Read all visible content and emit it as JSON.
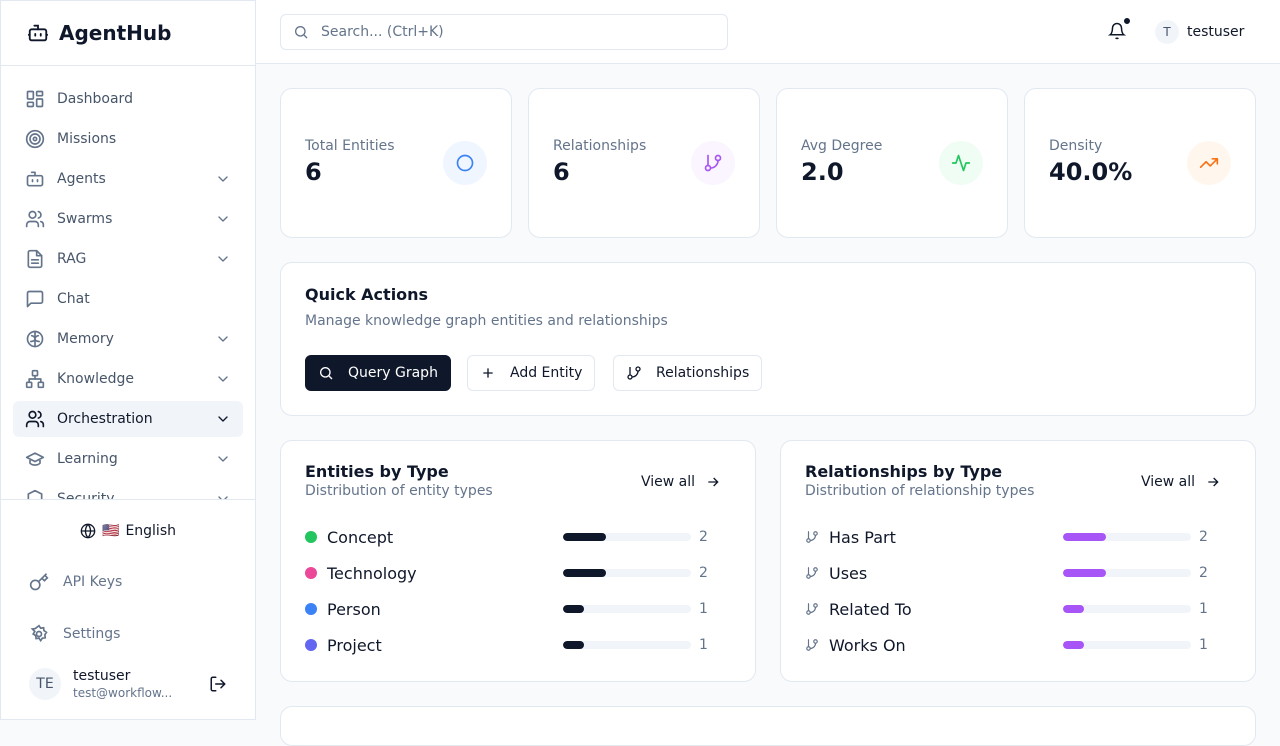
{
  "brand": {
    "name": "AgentHub"
  },
  "sidebar": {
    "items": [
      {
        "label": "Dashboard",
        "icon": "dashboard-icon",
        "chevron": false
      },
      {
        "label": "Missions",
        "icon": "target-icon",
        "chevron": false
      },
      {
        "label": "Agents",
        "icon": "bot-icon",
        "chevron": true
      },
      {
        "label": "Swarms",
        "icon": "users-icon",
        "chevron": true
      },
      {
        "label": "RAG",
        "icon": "file-text-icon",
        "chevron": true
      },
      {
        "label": "Chat",
        "icon": "message-icon",
        "chevron": false
      },
      {
        "label": "Memory",
        "icon": "brain-icon",
        "chevron": true
      },
      {
        "label": "Knowledge",
        "icon": "network-icon",
        "chevron": true
      },
      {
        "label": "Orchestration",
        "icon": "users-icon",
        "chevron": true,
        "active": true
      },
      {
        "label": "Learning",
        "icon": "graduation-cap-icon",
        "chevron": true
      },
      {
        "label": "Security",
        "icon": "shield-icon",
        "chevron": true
      }
    ],
    "language": {
      "flag": "🇺🇸",
      "label": "English"
    },
    "api_keys": "API Keys",
    "settings": "Settings",
    "user": {
      "initials": "TE",
      "name": "testuser",
      "email": "test@workflow..."
    }
  },
  "topbar": {
    "search_placeholder": "Search... (Ctrl+K)",
    "user_initial": "T",
    "username": "testuser",
    "has_notification": true
  },
  "stats": [
    {
      "label": "Total Entities",
      "value": "6",
      "icon": "circle-icon",
      "color": "#3b82f6",
      "bg": "#eff6ff"
    },
    {
      "label": "Relationships",
      "value": "6",
      "icon": "git-branch-icon",
      "color": "#a855f7",
      "bg": "#faf5ff"
    },
    {
      "label": "Avg Degree",
      "value": "2.0",
      "icon": "activity-icon",
      "color": "#22c55e",
      "bg": "#f0fdf4"
    },
    {
      "label": "Density",
      "value": "40.0%",
      "icon": "trending-up-icon",
      "color": "#f97316",
      "bg": "#fff7ed"
    }
  ],
  "quick_actions": {
    "title": "Quick Actions",
    "subtitle": "Manage knowledge graph entities and relationships",
    "buttons": [
      "Query Graph",
      "Add Entity",
      "Relationships"
    ]
  },
  "entities": {
    "title": "Entities by Type",
    "subtitle": "Distribution of entity types",
    "view_all": "View all",
    "total": 6,
    "bar_color": "#0f172a",
    "rows": [
      {
        "name": "Concept",
        "count": 2,
        "color": "#22c55e"
      },
      {
        "name": "Technology",
        "count": 2,
        "color": "#ec4899"
      },
      {
        "name": "Person",
        "count": 1,
        "color": "#3b82f6"
      },
      {
        "name": "Project",
        "count": 1,
        "color": "#6366f1"
      }
    ]
  },
  "relationships": {
    "title": "Relationships by Type",
    "subtitle": "Distribution of relationship types",
    "view_all": "View all",
    "total": 6,
    "bar_color": "#a855f7",
    "rows": [
      {
        "name": "Has Part",
        "count": 2
      },
      {
        "name": "Uses",
        "count": 2
      },
      {
        "name": "Related To",
        "count": 1
      },
      {
        "name": "Works On",
        "count": 1
      }
    ]
  }
}
